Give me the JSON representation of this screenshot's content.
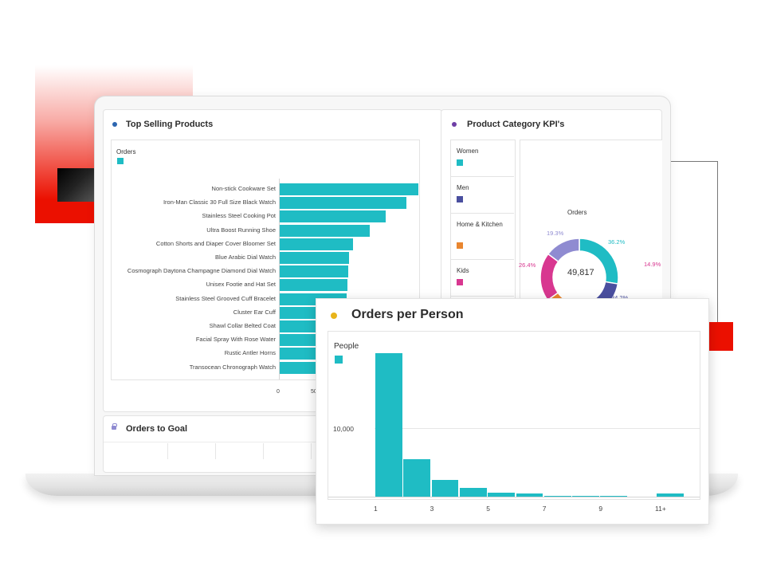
{
  "colors": {
    "teal": "#1fbcc4",
    "navy": "#4a4f9f",
    "orange": "#e9862f",
    "magenta": "#d83790",
    "lavender": "#8f8bd1",
    "brand_red": "#eb1000",
    "dot_blue": "#2d66b0",
    "dot_purple": "#6e3fa6",
    "dot_yellow": "#e8b41a"
  },
  "top_selling": {
    "title": "Top Selling Products",
    "icon": "dot-icon",
    "legend_label": "Orders",
    "chart_data": {
      "type": "bar",
      "orientation": "horizontal",
      "categories": [
        "Non-stick Cookware Set",
        "Iron-Man Classic 30 Full Size Black Watch",
        "Stainless Steel Cooking Pot",
        "Ultra Boost Running Shoe",
        "Cotton Shorts and Diaper Cover Bloomer Set",
        "Blue Arabic Dial Watch",
        "Cosmograph Daytona Champagne Diamond Dial Watch",
        "Unisex Footie and Hat Set",
        "Stainless Steel Grooved Cuff Bracelet",
        "Cluster Ear Cuff",
        "Shawl Collar Belted Coat",
        "Facial Spray With Rose Water",
        "Rustic Antler Horns",
        "Transocean Chronograph Watch"
      ],
      "values": [
        174,
        159,
        133,
        113,
        92,
        87,
        86,
        85,
        84,
        83,
        82,
        81,
        80,
        80
      ],
      "series_name": "Orders",
      "xaxis_ticks": [
        "0",
        "50"
      ]
    }
  },
  "orders_to_goal": {
    "title": "Orders to Goal"
  },
  "product_kpis": {
    "title": "Product Category KPI's",
    "legend": [
      {
        "label": "Women",
        "color": "#1fbcc4"
      },
      {
        "label": "Men",
        "color": "#4a4f9f"
      },
      {
        "label": "Home & Kitchen",
        "color": "#e9862f"
      },
      {
        "label": "Kids",
        "color": "#d83790"
      }
    ],
    "chart_data": {
      "type": "pie",
      "variant": "donut",
      "title": "Orders",
      "center_value": "49,817",
      "slices": [
        {
          "label": "36.2%",
          "value": 36.2,
          "color": "#1fbcc4"
        },
        {
          "label": "34.2%",
          "value": 34.2,
          "color": "#4a4f9f"
        },
        {
          "label": "",
          "value": 14.9,
          "color": "#e9862f"
        },
        {
          "label": "26.4%",
          "value": 26.4,
          "color": "#d83790"
        },
        {
          "label": "19.3%",
          "value": 19.3,
          "color": "#8f8bd1"
        }
      ],
      "outside_label": "14.9%"
    }
  },
  "orders_per_person": {
    "title": "Orders per Person",
    "legend_label": "People",
    "chart_data": {
      "type": "bar",
      "variant": "histogram",
      "categories": [
        "1",
        "2",
        "3",
        "4",
        "5",
        "6",
        "7",
        "8",
        "9",
        "10",
        "11+"
      ],
      "values": [
        14800,
        3900,
        1700,
        900,
        450,
        300,
        100,
        80,
        60,
        40,
        350
      ],
      "series_name": "People",
      "ytick_labels": [
        "10,000"
      ],
      "ytick_values": [
        10000
      ],
      "ylim": [
        0,
        17000
      ],
      "xtick_labels": [
        "1",
        "3",
        "5",
        "7",
        "9",
        "11+"
      ]
    }
  }
}
